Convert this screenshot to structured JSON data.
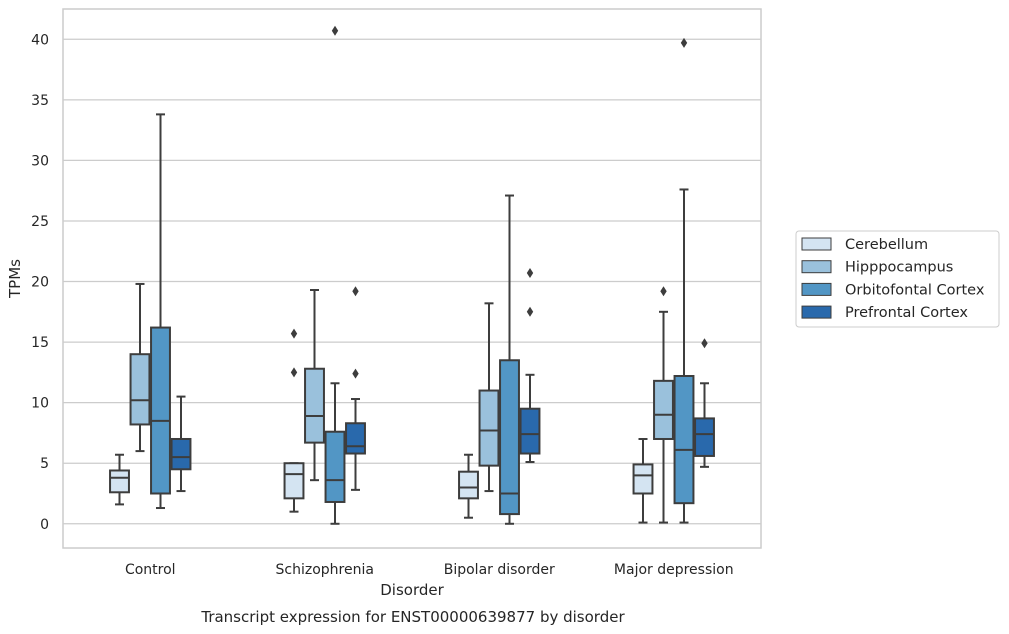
{
  "chart_data": {
    "type": "box",
    "caption": "Transcript expression for ENST00000639877 by disorder",
    "xlabel": "Disorder",
    "ylabel": "TPMs",
    "ylim": [
      -2,
      42.5
    ],
    "yticks": [
      0,
      5,
      10,
      15,
      20,
      25,
      30,
      35,
      40
    ],
    "grid": "horizontal",
    "legend_position": "right",
    "categories": [
      "Control",
      "Schizophrenia",
      "Bipolar disorder",
      "Major depression"
    ],
    "series": [
      {
        "name": "Cerebellum",
        "color": "#d4e4f2",
        "boxes": [
          {
            "whisker_low": 1.6,
            "q1": 2.6,
            "median": 3.8,
            "q3": 4.4,
            "whisker_high": 5.7,
            "outliers": []
          },
          {
            "whisker_low": 1.0,
            "q1": 2.1,
            "median": 4.1,
            "q3": 5.0,
            "whisker_high": 5.0,
            "outliers": [
              12.5,
              15.7
            ]
          },
          {
            "whisker_low": 0.5,
            "q1": 2.1,
            "median": 3.0,
            "q3": 4.3,
            "whisker_high": 5.7,
            "outliers": []
          },
          {
            "whisker_low": 0.1,
            "q1": 2.5,
            "median": 4.0,
            "q3": 4.9,
            "whisker_high": 7.0,
            "outliers": []
          }
        ]
      },
      {
        "name": "Hipppocampus",
        "color": "#9ac1dc",
        "boxes": [
          {
            "whisker_low": 6.0,
            "q1": 8.2,
            "median": 10.2,
            "q3": 14.0,
            "whisker_high": 19.8,
            "outliers": []
          },
          {
            "whisker_low": 3.6,
            "q1": 6.7,
            "median": 8.9,
            "q3": 12.8,
            "whisker_high": 19.3,
            "outliers": []
          },
          {
            "whisker_low": 2.7,
            "q1": 4.8,
            "median": 7.7,
            "q3": 11.0,
            "whisker_high": 18.2,
            "outliers": []
          },
          {
            "whisker_low": 0.1,
            "q1": 7.0,
            "median": 9.0,
            "q3": 11.8,
            "whisker_high": 17.5,
            "outliers": [
              19.2
            ]
          }
        ]
      },
      {
        "name": "Orbitofontal Cortex",
        "color": "#5296c5",
        "boxes": [
          {
            "whisker_low": 1.3,
            "q1": 2.5,
            "median": 8.5,
            "q3": 16.2,
            "whisker_high": 33.8,
            "outliers": []
          },
          {
            "whisker_low": 0.0,
            "q1": 1.8,
            "median": 3.6,
            "q3": 7.6,
            "whisker_high": 11.6,
            "outliers": [
              40.7
            ]
          },
          {
            "whisker_low": 0.0,
            "q1": 0.8,
            "median": 2.5,
            "q3": 13.5,
            "whisker_high": 27.1,
            "outliers": []
          },
          {
            "whisker_low": 0.1,
            "q1": 1.7,
            "median": 6.1,
            "q3": 12.2,
            "whisker_high": 27.6,
            "outliers": [
              39.7
            ]
          }
        ]
      },
      {
        "name": "Prefrontal Cortex",
        "color": "#2969ac",
        "boxes": [
          {
            "whisker_low": 2.7,
            "q1": 4.5,
            "median": 5.5,
            "q3": 7.0,
            "whisker_high": 10.5,
            "outliers": []
          },
          {
            "whisker_low": 2.8,
            "q1": 5.8,
            "median": 6.4,
            "q3": 8.3,
            "whisker_high": 10.3,
            "outliers": [
              12.4,
              19.2
            ]
          },
          {
            "whisker_low": 5.1,
            "q1": 5.8,
            "median": 7.4,
            "q3": 9.5,
            "whisker_high": 12.3,
            "outliers": [
              17.5,
              20.7
            ]
          },
          {
            "whisker_low": 4.7,
            "q1": 5.6,
            "median": 7.4,
            "q3": 8.7,
            "whisker_high": 11.6,
            "outliers": [
              14.9
            ]
          }
        ]
      }
    ]
  }
}
